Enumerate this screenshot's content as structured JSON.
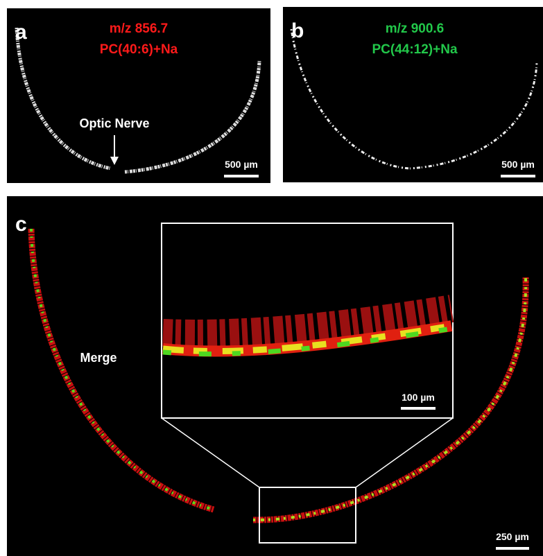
{
  "panels": {
    "a": {
      "label": "a",
      "mz": "m/z 856.7",
      "lipid": "PC(40:6)+Na",
      "annotation": "Optic Nerve",
      "scale_bar": "500 µm"
    },
    "b": {
      "label": "b",
      "mz": "m/z 900.6",
      "lipid": "PC(44:12)+Na",
      "scale_bar": "500 µm"
    },
    "c": {
      "label": "c",
      "annotation": "Merge",
      "inset_scale_bar": "100 µm",
      "scale_bar": "250 µm"
    }
  }
}
